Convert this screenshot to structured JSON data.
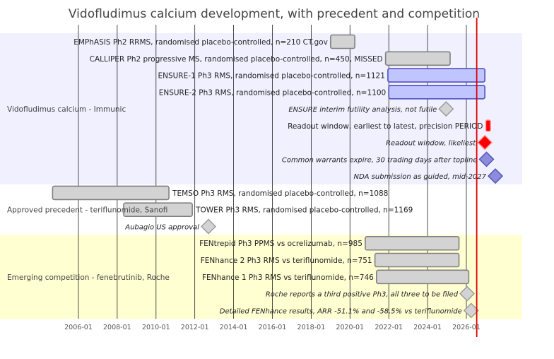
{
  "chart_data": {
    "type": "gantt",
    "title": "Vidofludimus calcium development, with precedent and competition",
    "xlim": [
      "2004-01-01",
      "2026-12-01"
    ],
    "x_ticks": [
      "2006-01",
      "2008-01",
      "2010-01",
      "2012-01",
      "2014-01",
      "2016-01",
      "2018-01",
      "2020-01",
      "2022-01",
      "2024-01",
      "2026-01"
    ],
    "today_line": "2026-07-15",
    "groups": [
      {
        "name": "Vidofludimus calcium - Immunic",
        "band_color": "#f0f0ff",
        "items": [
          {
            "kind": "bar",
            "label": "EMPhASIS Ph2 RRMS, randomised placebo-controlled, n=210 CT.gov",
            "start": "2019-01-01",
            "end": "2020-04-01",
            "fill": "#d3d3d3",
            "stroke": "#808080"
          },
          {
            "kind": "bar",
            "label": "CALLIPER Ph2 progressive MS, randomised placebo-controlled, n=450, MISSED",
            "start": "2021-11-01",
            "end": "2025-03-01",
            "fill": "#d3d3d3",
            "stroke": "#808080"
          },
          {
            "kind": "bar",
            "label": "ENSURE-1 Ph3 RMS, randomised placebo-controlled, n=1121",
            "start": "2021-12-15",
            "end": "2026-12-15",
            "fill": "#c0c4ff",
            "stroke": "#5050c0"
          },
          {
            "kind": "bar",
            "label": "ENSURE-2 Ph3 RMS, randomised placebo-controlled, n=1100",
            "start": "2022-01-01",
            "end": "2026-12-15",
            "fill": "#c0c4ff",
            "stroke": "#5050c0"
          },
          {
            "kind": "milestone",
            "label": "ENSURE interim futility analysis, not futile",
            "date": "2024-12-15",
            "fill": "#d3d3d3",
            "stroke": "#999999"
          },
          {
            "kind": "window",
            "label": "Readout window, earliest to latest, precision PERIOD",
            "start": "2027-01-01",
            "end": "2027-04-01",
            "fill": "#ff0000",
            "stroke": "#ff9999"
          },
          {
            "kind": "milestone",
            "label": "Readout window, likeliest",
            "date": "2026-12-15",
            "fill": "#ff0000",
            "stroke": "#ff9999"
          },
          {
            "kind": "milestone",
            "label": "Common warrants expire, 30 trading days after topline",
            "date": "2027-01-15",
            "fill": "#8c8cdc",
            "stroke": "#5050b4"
          },
          {
            "kind": "milestone",
            "label": "NDA submission as guided, mid-2027",
            "date": "2027-07-01",
            "fill": "#8c8cdc",
            "stroke": "#5050b4"
          }
        ]
      },
      {
        "name": "Approved precedent - teriflunomide, Sanofi",
        "band_color": "#ffffff",
        "items": [
          {
            "kind": "bar",
            "label": "TEMSO Ph3 RMS, randomised placebo-controlled, n=1088",
            "start": "2004-09-01",
            "end": "2010-09-01",
            "fill": "#d3d3d3",
            "stroke": "#808080"
          },
          {
            "kind": "bar",
            "label": "TOWER Ph3 RMS, randomised placebo-controlled, n=1169",
            "start": "2008-05-01",
            "end": "2011-11-15",
            "fill": "#d3d3d3",
            "stroke": "#808080"
          },
          {
            "kind": "milestone",
            "label": "Aubagio US approval",
            "date": "2012-09-15",
            "fill": "#d3d3d3",
            "stroke": "#999999"
          }
        ]
      },
      {
        "name": "Emerging competition - fenebrutinib, Roche",
        "band_color": "#ffffd2",
        "items": [
          {
            "kind": "bar",
            "label": "FENtrepid Ph3 PPMS vs ocrelizumab, n=985",
            "start": "2020-10-15",
            "end": "2025-08-15",
            "fill": "#d3d3d3",
            "stroke": "#808080"
          },
          {
            "kind": "bar",
            "label": "FENhance 2 Ph3 RMS vs teriflunomide, n=751",
            "start": "2021-04-15",
            "end": "2025-08-15",
            "fill": "#d3d3d3",
            "stroke": "#808080"
          },
          {
            "kind": "bar",
            "label": "FENhance 1 Ph3 RMS vs teriflunomide, n=746",
            "start": "2021-05-15",
            "end": "2026-02-15",
            "fill": "#d3d3d3",
            "stroke": "#808080"
          },
          {
            "kind": "milestone",
            "label": "Roche reports a third positive Ph3, all three to be filed",
            "date": "2026-01-15",
            "fill": "#d3d3d3",
            "stroke": "#999999"
          },
          {
            "kind": "milestone",
            "label": "Detailed FENhance results, ARR -51.1% and -58.5% vs teriflunomide",
            "date": "2026-04-01",
            "fill": "#d3d3d3",
            "stroke": "#999999"
          }
        ]
      }
    ]
  }
}
